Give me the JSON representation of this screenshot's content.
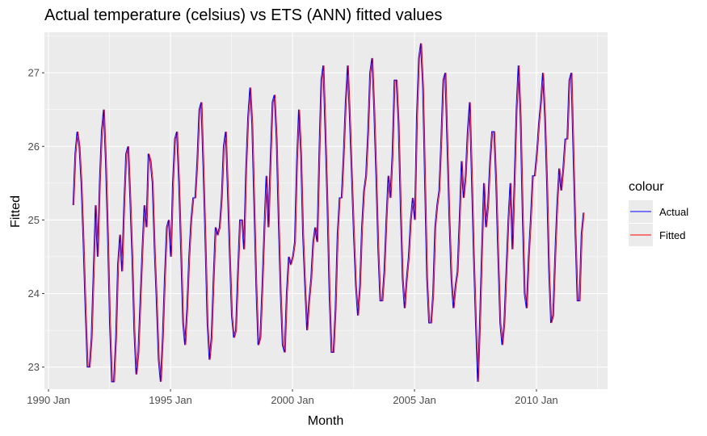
{
  "chart_data": {
    "type": "line",
    "title": "Actual temperature (celsius) vs ETS (ANN) fitted values",
    "xlabel": "Month",
    "ylabel": "Fitted",
    "x_ticks": [
      "1990 Jan",
      "1995 Jan",
      "2000 Jan",
      "2005 Jan",
      "2010 Jan"
    ],
    "y_ticks": [
      "23",
      "24",
      "25",
      "26",
      "27"
    ],
    "xlim": [
      "1989 Nov",
      "2012 Dec"
    ],
    "ylim": [
      22.7,
      27.55
    ],
    "grid": true,
    "legend": {
      "title": "colour",
      "position": "right"
    },
    "series": [
      {
        "name": "Actual",
        "color": "#0000ff",
        "start": "1991 Jan",
        "annual": [
          [
            25.2,
            25.9,
            26.2,
            26.0,
            25.5,
            24.7,
            23.8,
            23.0,
            23.0,
            23.4,
            24.3,
            25.2
          ],
          [
            24.5,
            25.5,
            26.2,
            26.5,
            25.8,
            24.8,
            23.6,
            22.8,
            22.8,
            23.4,
            24.4,
            24.8
          ],
          [
            24.3,
            25.2,
            25.9,
            26.0,
            25.3,
            24.5,
            23.5,
            22.9,
            23.2,
            23.9,
            24.6,
            25.2
          ],
          [
            24.9,
            25.9,
            25.8,
            25.5,
            24.6,
            23.9,
            23.1,
            22.8,
            23.4,
            24.2,
            24.9,
            25.0
          ],
          [
            24.5,
            25.5,
            26.1,
            26.2,
            25.5,
            24.6,
            23.6,
            23.3,
            23.8,
            24.5,
            25.0,
            25.3
          ],
          [
            25.3,
            25.8,
            26.5,
            26.6,
            25.7,
            24.7,
            23.6,
            23.1,
            23.4,
            24.2,
            24.9,
            24.8
          ],
          [
            24.9,
            25.3,
            26.0,
            26.2,
            25.4,
            24.5,
            23.7,
            23.4,
            23.5,
            24.3,
            25.0,
            25.0
          ],
          [
            24.6,
            25.7,
            26.4,
            26.8,
            26.3,
            25.2,
            24.1,
            23.3,
            23.4,
            24.1,
            24.9,
            25.6
          ],
          [
            24.9,
            25.8,
            26.6,
            26.7,
            26.1,
            25.0,
            24.0,
            23.3,
            23.2,
            24.0,
            24.5,
            24.4
          ],
          [
            24.5,
            24.7,
            25.8,
            26.5,
            25.9,
            24.8,
            24.1,
            23.5,
            23.9,
            24.2,
            24.7,
            24.9
          ],
          [
            24.7,
            25.9,
            26.9,
            27.1,
            26.2,
            25.2,
            24.0,
            23.2,
            23.2,
            23.8,
            24.8,
            25.3
          ],
          [
            25.3,
            25.9,
            26.6,
            27.1,
            26.4,
            25.6,
            24.8,
            24.1,
            23.7,
            24.1,
            24.9,
            25.4
          ],
          [
            25.6,
            26.2,
            27.0,
            27.2,
            26.5,
            25.6,
            24.6,
            23.9,
            23.9,
            24.3,
            25.0,
            25.6
          ],
          [
            25.3,
            25.9,
            26.9,
            26.9,
            26.3,
            25.2,
            24.2,
            23.8,
            24.2,
            24.5,
            25.0,
            25.3
          ],
          [
            25.0,
            26.4,
            27.2,
            27.4,
            26.8,
            25.5,
            24.2,
            23.6,
            23.6,
            24.0,
            24.9,
            25.2
          ],
          [
            25.4,
            26.1,
            26.9,
            27.0,
            26.0,
            25.0,
            24.2,
            23.8,
            24.1,
            24.3,
            25.0,
            25.8
          ],
          [
            25.3,
            25.6,
            26.2,
            26.6,
            25.6,
            24.5,
            23.6,
            22.8,
            23.6,
            24.6,
            25.5,
            24.9
          ],
          [
            25.2,
            25.8,
            26.2,
            26.2,
            25.5,
            24.5,
            23.6,
            23.3,
            23.6,
            24.3,
            25.0,
            25.5
          ],
          [
            24.6,
            25.5,
            26.5,
            27.1,
            26.4,
            25.1,
            24.0,
            23.8,
            24.5,
            25.0,
            25.6,
            25.6
          ],
          [
            25.9,
            26.3,
            26.6,
            27.0,
            26.4,
            25.5,
            24.3,
            23.6,
            23.7,
            24.5,
            25.2,
            25.7
          ],
          [
            25.4,
            25.7,
            26.1,
            26.1,
            26.9,
            27.0,
            25.9,
            24.8,
            23.9,
            23.9,
            24.8,
            25.1
          ]
        ]
      },
      {
        "name": "Fitted",
        "color": "#ff0000",
        "note_lag": 1
      }
    ]
  },
  "legend_items": [
    {
      "label": "Actual",
      "color": "#0000ff"
    },
    {
      "label": "Fitted",
      "color": "#ff0000"
    }
  ]
}
